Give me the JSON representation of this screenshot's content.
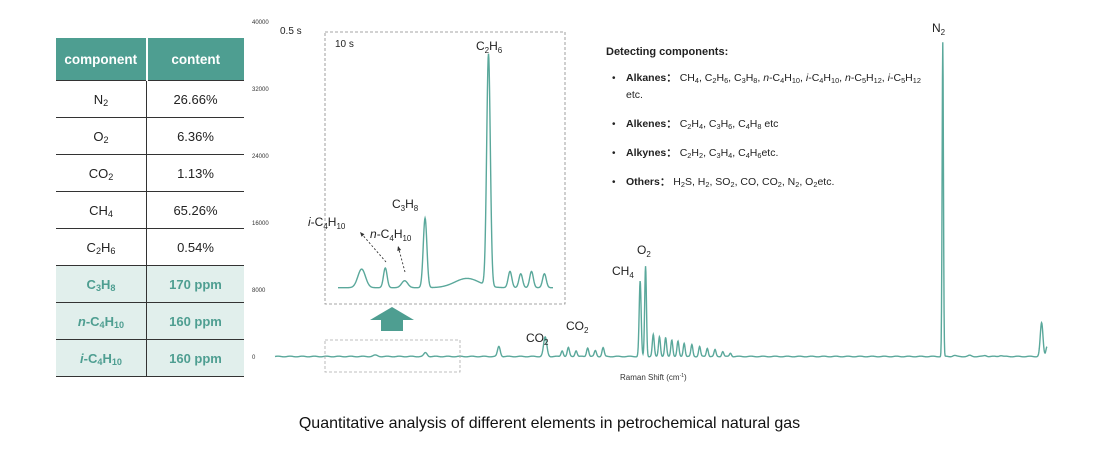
{
  "table": {
    "headers": [
      "component",
      "content"
    ],
    "rows": [
      {
        "sym": "N",
        "sub": "2",
        "pre": "",
        "value": "26.66%",
        "highlight": false
      },
      {
        "sym": "O",
        "sub": "2",
        "pre": "",
        "value": "6.36%",
        "highlight": false
      },
      {
        "sym": "CO",
        "sub": "2",
        "pre": "",
        "value": "1.13%",
        "highlight": false
      },
      {
        "sym": "CH",
        "sub": "4",
        "pre": "",
        "value": "65.26%",
        "highlight": false
      },
      {
        "sym": "C",
        "sub": "2",
        "sym2": "H",
        "sub2": "6",
        "pre": "",
        "value": "0.54%",
        "highlight": false
      },
      {
        "sym": "C",
        "sub": "3",
        "sym2": "H",
        "sub2": "8",
        "pre": "",
        "value": "170 ppm",
        "highlight": true
      },
      {
        "sym": "-C",
        "sub": "4",
        "sym2": "H",
        "sub2": "10",
        "pre": "n",
        "value": "160 ppm",
        "highlight": true
      },
      {
        "sym": "-C",
        "sub": "4",
        "sym2": "H",
        "sub2": "10",
        "pre": "i",
        "value": "160 ppm",
        "highlight": true
      }
    ]
  },
  "chart_data": {
    "type": "line",
    "xlabel": "Raman Shift (cm-1)",
    "ylabel": "",
    "ylim": [
      0,
      40000
    ],
    "yticks": [
      0,
      8000,
      16000,
      24000,
      32000,
      40000
    ],
    "main_exposure_label": "0.5 s",
    "inset_exposure_label": "10 s",
    "series_color": "#5aa89b",
    "main_peaks": [
      {
        "label_main": "CO",
        "label_sub": "2",
        "x": 0.29,
        "y": 1400
      },
      {
        "label_main": "CO",
        "label_sub": "2",
        "x": 0.35,
        "y": 2600
      },
      {
        "label_main": "CH",
        "label_sub": "4",
        "x": 0.473,
        "y": 9200
      },
      {
        "label_main": "O",
        "label_sub": "2",
        "x": 0.48,
        "y": 11000
      },
      {
        "label_main": "N",
        "label_sub": "2",
        "x": 0.865,
        "y": 37600
      }
    ],
    "inset_peaks": [
      {
        "label": "i-C4H10",
        "x": 0.2,
        "y": 0.12
      },
      {
        "label": "n-C4H10",
        "x": 0.27,
        "y": 0.12
      },
      {
        "label": "C3H8",
        "x": 0.37,
        "y": 0.3
      },
      {
        "label": "C2H6",
        "x": 0.68,
        "y": 1.0
      }
    ]
  },
  "info": {
    "heading": "Detecting components:",
    "items": [
      {
        "name": "Alkanes",
        "html": "CH<sub>4</sub>, C<sub>2</sub>H<sub>6</sub>, C<sub>3</sub>H<sub>8</sub>, <i>n</i>-C<sub>4</sub>H<sub>10</sub>, <i>i</i>-C<sub>4</sub>H<sub>10</sub>, <i>n</i>-C<sub>5</sub>H<sub>12</sub>, <i>i</i>-C<sub>5</sub>H<sub>12</sub> etc."
      },
      {
        "name": "Alkenes",
        "html": "C<sub>2</sub>H<sub>4</sub>, C<sub>3</sub>H<sub>6</sub>, C<sub>4</sub>H<sub>8</sub> etc"
      },
      {
        "name": "Alkynes",
        "html": "C<sub>2</sub>H<sub>2</sub>, C<sub>3</sub>H<sub>4</sub>,  C<sub>4</sub>H<sub>6</sub>etc."
      },
      {
        "name": "Others",
        "html": "H<sub>2</sub>S, H<sub>2</sub>, SO<sub>2</sub>, CO, CO<sub>2</sub>, N<sub>2</sub>, O<sub>2</sub>etc."
      }
    ]
  },
  "caption": "Quantitative analysis of different elements in petrochemical natural gas"
}
